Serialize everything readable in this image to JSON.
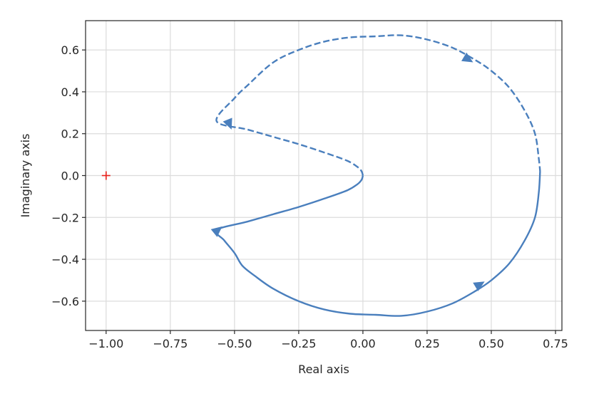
{
  "chart_data": {
    "type": "line",
    "title": "",
    "xlabel": "Real axis",
    "ylabel": "Imaginary axis",
    "xlim": [
      -1.08,
      0.775
    ],
    "ylim": [
      -0.74,
      0.74
    ],
    "xticks": [
      -1.0,
      -0.75,
      -0.5,
      -0.25,
      0.0,
      0.25,
      0.5,
      0.75
    ],
    "xtick_labels": [
      "−1.00",
      "−0.75",
      "−0.50",
      "−0.25",
      "0.00",
      "0.25",
      "0.50",
      "0.75"
    ],
    "yticks": [
      -0.6,
      -0.4,
      -0.2,
      0.0,
      0.2,
      0.4,
      0.6
    ],
    "ytick_labels": [
      "−0.6",
      "−0.4",
      "−0.2",
      "0.0",
      "0.2",
      "0.4",
      "0.6"
    ],
    "grid": true,
    "colors": {
      "curve": "#4a7fbd",
      "critical_point": "#e8211b",
      "frame": "#262626",
      "grid": "#dcdcdc"
    },
    "series": [
      {
        "style": "solid",
        "x": [
          0.69,
          0.685,
          0.67,
          0.63,
          0.57,
          0.5,
          0.44,
          0.35,
          0.25,
          0.15,
          0.05,
          -0.05,
          -0.15,
          -0.25,
          -0.35,
          -0.42,
          -0.47,
          -0.5,
          -0.54,
          -0.57,
          -0.45,
          -0.35,
          -0.25,
          -0.15,
          -0.06,
          -0.02,
          -0.005,
          0.0
        ],
        "y": [
          0.02,
          -0.08,
          -0.2,
          -0.31,
          -0.42,
          -0.5,
          -0.55,
          -0.61,
          -0.65,
          -0.67,
          -0.665,
          -0.66,
          -0.64,
          -0.6,
          -0.54,
          -0.48,
          -0.43,
          -0.37,
          -0.31,
          -0.26,
          -0.22,
          -0.185,
          -0.15,
          -0.11,
          -0.07,
          -0.04,
          -0.02,
          0.0
        ]
      },
      {
        "style": "dashed",
        "x": [
          0.0,
          -0.005,
          -0.02,
          -0.06,
          -0.15,
          -0.25,
          -0.35,
          -0.45,
          -0.57,
          -0.5,
          -0.45,
          -0.35,
          -0.25,
          -0.15,
          -0.05,
          0.05,
          0.15,
          0.25,
          0.35,
          0.44,
          0.5,
          0.57,
          0.63,
          0.67,
          0.685,
          0.69
        ],
        "y": [
          0.0,
          0.02,
          0.04,
          0.07,
          0.11,
          0.15,
          0.185,
          0.22,
          0.26,
          0.37,
          0.43,
          0.54,
          0.6,
          0.64,
          0.66,
          0.665,
          0.67,
          0.65,
          0.61,
          0.55,
          0.5,
          0.42,
          0.31,
          0.2,
          0.08,
          0.02
        ]
      }
    ],
    "arrows": [
      {
        "x": 0.455,
        "y": -0.52,
        "direction": "backward"
      },
      {
        "x": -0.565,
        "y": -0.26,
        "direction": "forward"
      },
      {
        "x": -0.52,
        "y": 0.245,
        "direction": "backward"
      },
      {
        "x": 0.41,
        "y": 0.555,
        "direction": "forward"
      }
    ],
    "critical_point": {
      "x": -1.0,
      "y": 0.0,
      "marker": "+"
    }
  }
}
